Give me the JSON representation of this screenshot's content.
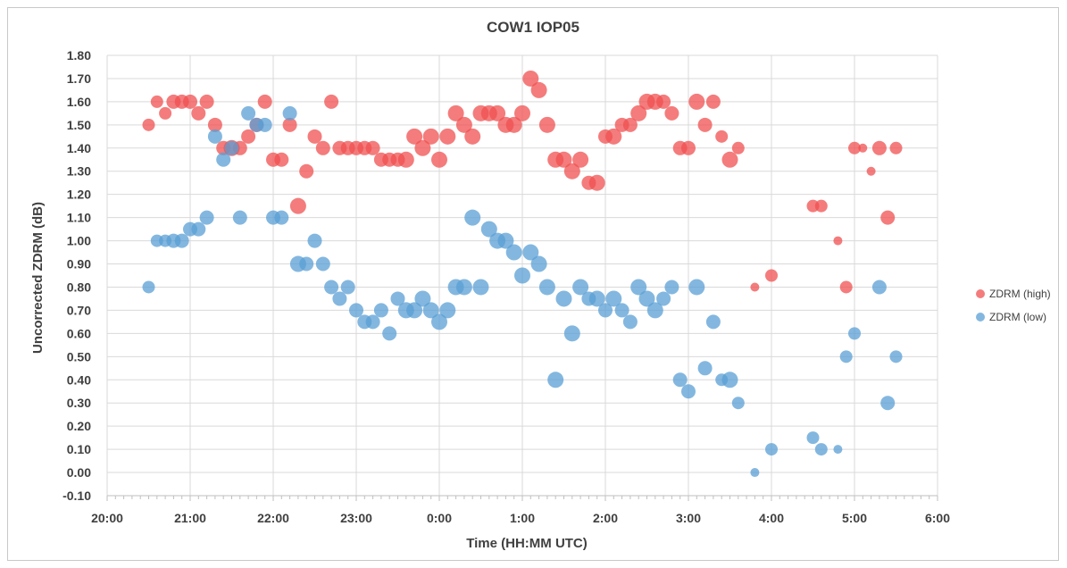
{
  "chart_data": {
    "type": "scatter",
    "title": "COW1 IOP05",
    "xlabel": "Time (HH:MM UTC)",
    "ylabel": "Uncorrected ZDRM (dB)",
    "xlim": [
      20,
      30
    ],
    "ylim": [
      -0.1,
      1.8
    ],
    "x_tick_labels": [
      "20:00",
      "21:00",
      "22:00",
      "23:00",
      "0:00",
      "1:00",
      "2:00",
      "3:00",
      "4:00",
      "5:00",
      "6:00"
    ],
    "y_tick_labels": [
      "-0.10",
      "0.00",
      "0.10",
      "0.20",
      "0.30",
      "0.40",
      "0.50",
      "0.60",
      "0.70",
      "0.80",
      "0.90",
      "1.00",
      "1.10",
      "1.20",
      "1.30",
      "1.40",
      "1.50",
      "1.60",
      "1.70",
      "1.80"
    ],
    "grid": true,
    "legend_position": "right",
    "series": [
      {
        "name": "ZDRM (high)",
        "color": "#f05050",
        "points": [
          [
            20.5,
            1.5,
            7
          ],
          [
            20.6,
            1.6,
            7
          ],
          [
            20.7,
            1.55,
            7
          ],
          [
            20.8,
            1.6,
            8
          ],
          [
            20.9,
            1.6,
            8
          ],
          [
            21.0,
            1.6,
            8
          ],
          [
            21.1,
            1.55,
            8
          ],
          [
            21.2,
            1.6,
            8
          ],
          [
            21.3,
            1.5,
            8
          ],
          [
            21.4,
            1.4,
            8
          ],
          [
            21.5,
            1.4,
            9
          ],
          [
            21.6,
            1.4,
            8
          ],
          [
            21.7,
            1.45,
            8
          ],
          [
            21.8,
            1.5,
            8
          ],
          [
            21.9,
            1.6,
            8
          ],
          [
            22.0,
            1.35,
            8
          ],
          [
            22.1,
            1.35,
            8
          ],
          [
            22.2,
            1.5,
            8
          ],
          [
            22.3,
            1.15,
            9
          ],
          [
            22.4,
            1.3,
            8
          ],
          [
            22.5,
            1.45,
            8
          ],
          [
            22.6,
            1.4,
            8
          ],
          [
            22.7,
            1.6,
            8
          ],
          [
            22.8,
            1.4,
            8
          ],
          [
            22.9,
            1.4,
            8
          ],
          [
            23.0,
            1.4,
            8
          ],
          [
            23.1,
            1.4,
            8
          ],
          [
            23.2,
            1.4,
            8
          ],
          [
            23.3,
            1.35,
            8
          ],
          [
            23.4,
            1.35,
            8
          ],
          [
            23.5,
            1.35,
            8
          ],
          [
            23.6,
            1.35,
            9
          ],
          [
            23.7,
            1.45,
            9
          ],
          [
            23.8,
            1.4,
            9
          ],
          [
            23.9,
            1.45,
            9
          ],
          [
            24.0,
            1.35,
            9
          ],
          [
            24.1,
            1.45,
            9
          ],
          [
            24.2,
            1.55,
            9
          ],
          [
            24.3,
            1.5,
            9
          ],
          [
            24.4,
            1.45,
            9
          ],
          [
            24.5,
            1.55,
            9
          ],
          [
            24.6,
            1.55,
            9
          ],
          [
            24.7,
            1.55,
            9
          ],
          [
            24.8,
            1.5,
            9
          ],
          [
            24.9,
            1.5,
            9
          ],
          [
            25.0,
            1.55,
            9
          ],
          [
            25.1,
            1.7,
            9
          ],
          [
            25.2,
            1.65,
            9
          ],
          [
            25.3,
            1.5,
            9
          ],
          [
            25.4,
            1.35,
            9
          ],
          [
            25.5,
            1.35,
            9
          ],
          [
            25.6,
            1.3,
            9
          ],
          [
            25.7,
            1.35,
            9
          ],
          [
            25.8,
            1.25,
            8
          ],
          [
            25.9,
            1.25,
            9
          ],
          [
            26.0,
            1.45,
            8
          ],
          [
            26.1,
            1.45,
            9
          ],
          [
            26.2,
            1.5,
            8
          ],
          [
            26.3,
            1.5,
            8
          ],
          [
            26.4,
            1.55,
            9
          ],
          [
            26.5,
            1.6,
            9
          ],
          [
            26.6,
            1.6,
            9
          ],
          [
            26.7,
            1.6,
            8
          ],
          [
            26.8,
            1.55,
            8
          ],
          [
            26.9,
            1.4,
            8
          ],
          [
            27.0,
            1.4,
            8
          ],
          [
            27.1,
            1.6,
            9
          ],
          [
            27.2,
            1.5,
            8
          ],
          [
            27.3,
            1.6,
            8
          ],
          [
            27.4,
            1.45,
            7
          ],
          [
            27.5,
            1.35,
            9
          ],
          [
            27.6,
            1.4,
            7
          ],
          [
            27.8,
            0.8,
            5
          ],
          [
            28.0,
            0.85,
            7
          ],
          [
            28.5,
            1.15,
            7
          ],
          [
            28.6,
            1.15,
            7
          ],
          [
            28.8,
            1.0,
            5
          ],
          [
            28.9,
            0.8,
            7
          ],
          [
            29.0,
            1.4,
            7
          ],
          [
            29.1,
            1.4,
            5
          ],
          [
            29.2,
            1.3,
            5
          ],
          [
            29.3,
            1.4,
            8
          ],
          [
            29.4,
            1.1,
            8
          ],
          [
            29.5,
            1.4,
            7
          ]
        ]
      },
      {
        "name": "ZDRM (low)",
        "color": "#5a9fd4",
        "points": [
          [
            20.5,
            0.8,
            7
          ],
          [
            20.6,
            1.0,
            7
          ],
          [
            20.7,
            1.0,
            7
          ],
          [
            20.8,
            1.0,
            8
          ],
          [
            20.9,
            1.0,
            8
          ],
          [
            21.0,
            1.05,
            8
          ],
          [
            21.1,
            1.05,
            8
          ],
          [
            21.2,
            1.1,
            8
          ],
          [
            21.3,
            1.45,
            8
          ],
          [
            21.4,
            1.35,
            8
          ],
          [
            21.5,
            1.4,
            8
          ],
          [
            21.6,
            1.1,
            8
          ],
          [
            21.7,
            1.55,
            8
          ],
          [
            21.8,
            1.5,
            8
          ],
          [
            21.9,
            1.5,
            8
          ],
          [
            22.0,
            1.1,
            8
          ],
          [
            22.1,
            1.1,
            8
          ],
          [
            22.2,
            1.55,
            8
          ],
          [
            22.3,
            0.9,
            9
          ],
          [
            22.4,
            0.9,
            8
          ],
          [
            22.5,
            1.0,
            8
          ],
          [
            22.6,
            0.9,
            8
          ],
          [
            22.7,
            0.8,
            8
          ],
          [
            22.8,
            0.75,
            8
          ],
          [
            22.9,
            0.8,
            8
          ],
          [
            23.0,
            0.7,
            8
          ],
          [
            23.1,
            0.65,
            8
          ],
          [
            23.2,
            0.65,
            8
          ],
          [
            23.3,
            0.7,
            8
          ],
          [
            23.4,
            0.6,
            8
          ],
          [
            23.5,
            0.75,
            8
          ],
          [
            23.6,
            0.7,
            9
          ],
          [
            23.7,
            0.7,
            9
          ],
          [
            23.8,
            0.75,
            9
          ],
          [
            23.9,
            0.7,
            9
          ],
          [
            24.0,
            0.65,
            9
          ],
          [
            24.1,
            0.7,
            9
          ],
          [
            24.2,
            0.8,
            9
          ],
          [
            24.3,
            0.8,
            9
          ],
          [
            24.4,
            1.1,
            9
          ],
          [
            24.5,
            0.8,
            9
          ],
          [
            24.6,
            1.05,
            9
          ],
          [
            24.7,
            1.0,
            9
          ],
          [
            24.8,
            1.0,
            9
          ],
          [
            24.9,
            0.95,
            9
          ],
          [
            25.0,
            0.85,
            9
          ],
          [
            25.1,
            0.95,
            9
          ],
          [
            25.2,
            0.9,
            9
          ],
          [
            25.3,
            0.8,
            9
          ],
          [
            25.4,
            0.4,
            9
          ],
          [
            25.5,
            0.75,
            9
          ],
          [
            25.6,
            0.6,
            9
          ],
          [
            25.7,
            0.8,
            9
          ],
          [
            25.8,
            0.75,
            8
          ],
          [
            25.9,
            0.75,
            9
          ],
          [
            26.0,
            0.7,
            8
          ],
          [
            26.1,
            0.75,
            9
          ],
          [
            26.2,
            0.7,
            8
          ],
          [
            26.3,
            0.65,
            8
          ],
          [
            26.4,
            0.8,
            9
          ],
          [
            26.5,
            0.75,
            9
          ],
          [
            26.6,
            0.7,
            9
          ],
          [
            26.7,
            0.75,
            8
          ],
          [
            26.8,
            0.8,
            8
          ],
          [
            26.9,
            0.4,
            8
          ],
          [
            27.0,
            0.35,
            8
          ],
          [
            27.1,
            0.8,
            9
          ],
          [
            27.2,
            0.45,
            8
          ],
          [
            27.3,
            0.65,
            8
          ],
          [
            27.4,
            0.4,
            7
          ],
          [
            27.5,
            0.4,
            9
          ],
          [
            27.6,
            0.3,
            7
          ],
          [
            27.8,
            0.0,
            5
          ],
          [
            28.0,
            0.1,
            7
          ],
          [
            28.5,
            0.15,
            7
          ],
          [
            28.6,
            0.1,
            7
          ],
          [
            28.8,
            0.1,
            5
          ],
          [
            28.9,
            0.5,
            7
          ],
          [
            29.0,
            0.6,
            7
          ],
          [
            29.3,
            0.8,
            8
          ],
          [
            29.4,
            0.3,
            8
          ],
          [
            29.5,
            0.5,
            7
          ]
        ]
      }
    ]
  }
}
